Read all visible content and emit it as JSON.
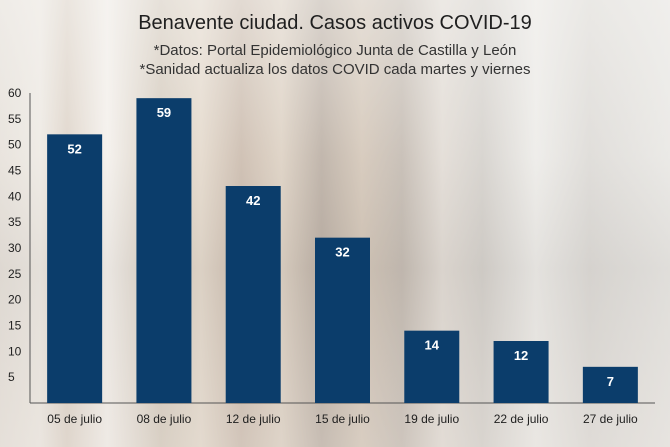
{
  "chart_data": {
    "type": "bar",
    "title": "Benavente ciudad. Casos activos COVID-19",
    "subtitle": [
      "*Datos: Portal Epidemiológico Junta de Castilla y León",
      "*Sanidad actualiza los datos COVID cada martes y viernes"
    ],
    "categories": [
      "05 de julio",
      "08 de julio",
      "12 de julio",
      "15 de julio",
      "19 de julio",
      "22 de julio",
      "27 de julio"
    ],
    "values": [
      52,
      59,
      42,
      32,
      14,
      12,
      7
    ],
    "yticks": [
      5,
      10,
      15,
      20,
      25,
      30,
      35,
      40,
      45,
      50,
      55,
      60
    ],
    "ylim": [
      0,
      60
    ],
    "xlabel": "",
    "ylabel": "",
    "grid": false,
    "bar_color": "#0b3d6b"
  }
}
